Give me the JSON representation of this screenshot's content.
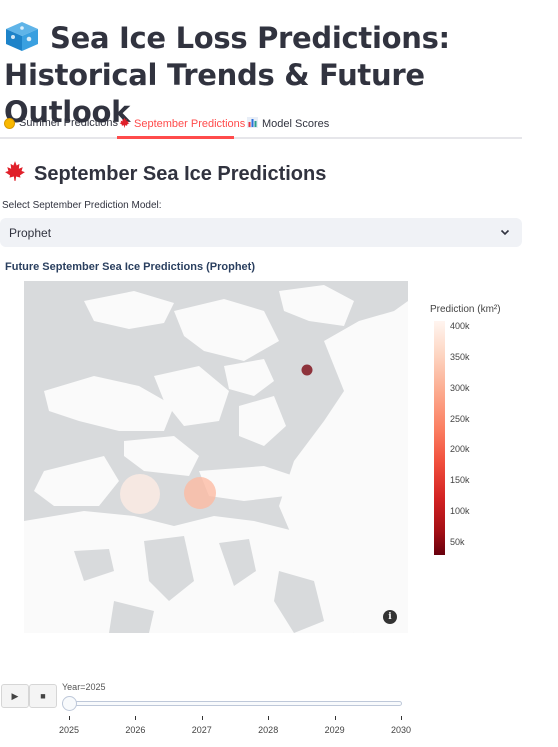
{
  "page": {
    "title": "Sea Ice Loss Predictions: Historical Trends & Future Outlook",
    "title_icon": "ice-cube-icon"
  },
  "tabs": [
    {
      "label": "Summer Predictions",
      "icon": "sun-icon",
      "active": false
    },
    {
      "label": "September Predictions",
      "icon": "maple-leaf-icon",
      "active": true
    },
    {
      "label": "Model Scores",
      "icon": "bar-chart-icon",
      "active": false
    }
  ],
  "section": {
    "title": "September Sea Ice Predictions",
    "icon": "maple-leaf-icon"
  },
  "model_select": {
    "label": "Select September Prediction Model:",
    "value": "Prophet"
  },
  "chart_data": {
    "type": "scatter",
    "title": "Future September Sea Ice Predictions (Prophet)",
    "colorbar": {
      "title": "Prediction (km²)",
      "ticks": [
        "400k",
        "350k",
        "300k",
        "250k",
        "200k",
        "150k",
        "100k",
        "50k"
      ],
      "range": [
        30000,
        410000
      ]
    },
    "animation_frame": "Year=2025",
    "points": [
      {
        "value": 395000
      },
      {
        "value": 320000
      },
      {
        "value": 45000
      }
    ],
    "colors": {
      "high": "#fff5f0",
      "low": "#67000d",
      "land": "#fafafa",
      "water": "#d8dadc"
    }
  },
  "player": {
    "play_label": "▶",
    "stop_label": "■",
    "current_value": "Year=2025",
    "years": [
      "2025",
      "2026",
      "2027",
      "2028",
      "2029",
      "2030"
    ],
    "selected_index": 0
  }
}
